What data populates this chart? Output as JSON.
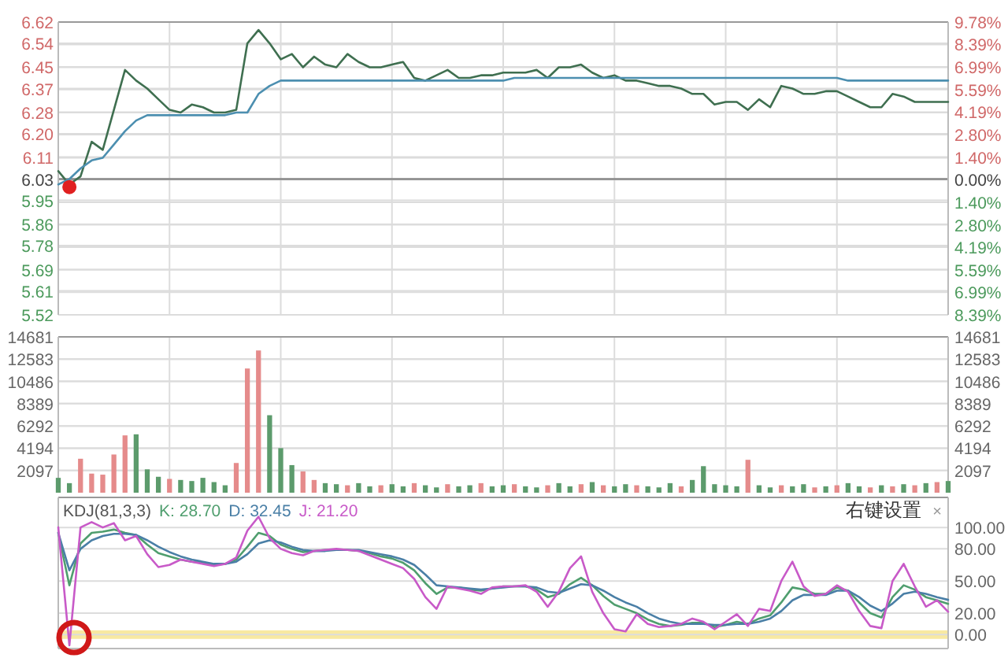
{
  "chart_data": [
    {
      "type": "line",
      "tick_labels": "y",
      "grid": true,
      "marker": "none",
      "categories": [
        null,
        null,
        null,
        null,
        null,
        null,
        null,
        null,
        null,
        null,
        null,
        null,
        null,
        null,
        null,
        null,
        null,
        null,
        null,
        null,
        null,
        null,
        null,
        null,
        null,
        null,
        null,
        null,
        null,
        null,
        null,
        null,
        null,
        null,
        null,
        null,
        null,
        null,
        null,
        null,
        null,
        null,
        null,
        null,
        null,
        null,
        null,
        null,
        null,
        null,
        null,
        null,
        null,
        null,
        null,
        null,
        null,
        null,
        null,
        null,
        null,
        null,
        null,
        null,
        null,
        null,
        null,
        null,
        null,
        null,
        null,
        null,
        null,
        null,
        null,
        null,
        null,
        null,
        null,
        null,
        null
      ],
      "ylim": [
        5.52,
        6.62
      ],
      "yticks": [
        6.62,
        6.54,
        6.45,
        6.37,
        6.28,
        {
          "value": 6.2,
          "label": "6.20"
        },
        6.11,
        6.03,
        5.95,
        5.86,
        5.78,
        5.69,
        5.61,
        5.52
      ],
      "y2lim": [
        -8.39,
        9.78
      ],
      "y2ticks": [
        {
          "value": 9.78,
          "label": "9.78%"
        },
        {
          "value": 8.39,
          "label": "8.39%"
        },
        {
          "value": 6.99,
          "label": "6.99%"
        },
        {
          "value": 5.59,
          "label": "5.59%"
        },
        {
          "value": 4.19,
          "label": "4.19%"
        },
        {
          "value": 2.8,
          "label": "2.80%"
        },
        {
          "value": 1.4,
          "label": "1.40%"
        },
        {
          "value": 0,
          "label": "0.00%"
        },
        {
          "value": -1.4,
          "label": "1.40%"
        },
        {
          "value": -2.8,
          "label": "2.80%"
        },
        {
          "value": -4.19,
          "label": "4.19%"
        },
        {
          "value": -5.59,
          "label": "5.59%"
        },
        {
          "value": -6.99,
          "label": "6.99%"
        },
        {
          "value": -8.39,
          "label": "8.39%"
        }
      ],
      "ref_lines": [
        {
          "axis": "y",
          "value": 6.03,
          "color": "#888888"
        }
      ],
      "series": [
        {
          "color": "#3f6f50",
          "values": [
            6.06,
            6.01,
            6.04,
            6.17,
            6.14,
            6.29,
            6.44,
            6.4,
            6.37,
            6.33,
            6.29,
            6.28,
            6.31,
            6.3,
            6.28,
            6.28,
            6.29,
            6.54,
            6.59,
            6.54,
            6.48,
            6.5,
            6.45,
            6.49,
            6.46,
            6.45,
            6.5,
            6.47,
            6.45,
            6.45,
            6.46,
            6.47,
            6.41,
            6.4,
            6.42,
            6.44,
            6.41,
            6.41,
            6.42,
            6.42,
            6.43,
            6.43,
            6.43,
            6.44,
            6.41,
            6.45,
            6.45,
            6.46,
            6.43,
            6.41,
            6.42,
            6.4,
            6.4,
            6.39,
            6.38,
            6.38,
            6.37,
            6.35,
            6.35,
            6.31,
            6.32,
            6.32,
            6.29,
            6.33,
            6.3,
            6.38,
            6.37,
            6.35,
            6.35,
            6.36,
            6.36,
            6.34,
            6.32,
            6.3,
            6.3,
            6.35,
            6.34,
            6.32,
            6.32,
            6.32,
            6.32
          ]
        },
        {
          "color": "#4c8fb0",
          "values": [
            6.01,
            6.03,
            6.07,
            6.1,
            6.11,
            6.16,
            6.21,
            6.25,
            6.27,
            6.27,
            6.27,
            6.27,
            6.27,
            6.27,
            6.27,
            6.27,
            6.28,
            6.28,
            6.35,
            6.38,
            6.4,
            6.4,
            6.4,
            6.4,
            6.4,
            6.4,
            6.4,
            6.4,
            6.4,
            6.4,
            6.4,
            6.4,
            6.4,
            6.4,
            6.4,
            6.4,
            6.4,
            6.4,
            6.4,
            6.4,
            6.4,
            6.41,
            6.41,
            6.41,
            6.41,
            6.41,
            6.41,
            6.41,
            6.41,
            6.41,
            6.41,
            6.41,
            6.41,
            6.41,
            6.41,
            6.41,
            6.41,
            6.41,
            6.41,
            6.41,
            6.41,
            6.41,
            6.41,
            6.41,
            6.41,
            6.41,
            6.41,
            6.41,
            6.41,
            6.41,
            6.41,
            6.4,
            6.4,
            6.4,
            6.4,
            6.4,
            6.4,
            6.4,
            6.4,
            6.4,
            6.4
          ]
        },
        {
          "type": "scatter",
          "marker": "circle",
          "color": "#e02020",
          "values": [
            null,
            6.0,
            null,
            null,
            null,
            null,
            null,
            null,
            null,
            null,
            null,
            null,
            null,
            null,
            null,
            null,
            null,
            null,
            null,
            null,
            null,
            null,
            null,
            null,
            null,
            null,
            null,
            null,
            null,
            null,
            null,
            null,
            null,
            null,
            null,
            null,
            null,
            null,
            null,
            null,
            null,
            null,
            null,
            null,
            null,
            null,
            null,
            null,
            null,
            null,
            null,
            null,
            null,
            null,
            null,
            null,
            null,
            null,
            null,
            null,
            null,
            null,
            null,
            null,
            null,
            null,
            null,
            null,
            null,
            null,
            null,
            null,
            null,
            null,
            null,
            null,
            null,
            null,
            null,
            null,
            null
          ]
        }
      ]
    },
    {
      "type": "bar",
      "tick_labels": "y",
      "grid": true,
      "categories": [
        null,
        null,
        null,
        null,
        null,
        null,
        null,
        null,
        null,
        null,
        null,
        null,
        null,
        null,
        null,
        null,
        null,
        null,
        null,
        null,
        null,
        null,
        null,
        null,
        null,
        null,
        null,
        null,
        null,
        null,
        null,
        null,
        null,
        null,
        null,
        null,
        null,
        null,
        null,
        null,
        null,
        null,
        null,
        null,
        null,
        null,
        null,
        null,
        null,
        null,
        null,
        null,
        null,
        null,
        null,
        null,
        null,
        null,
        null,
        null,
        null,
        null,
        null,
        null,
        null,
        null,
        null,
        null,
        null,
        null,
        null,
        null,
        null,
        null,
        null,
        null,
        null,
        null,
        null,
        null,
        null
      ],
      "ylim": [
        0,
        14681
      ],
      "yticks": [
        14681,
        12583,
        10486,
        8389,
        6292,
        4194,
        2097
      ],
      "y2lim": [
        0,
        14681
      ],
      "y2ticks": [
        14681,
        12583,
        10486,
        8389,
        6292,
        4194,
        2097
      ],
      "values": [
        1400,
        900,
        3200,
        1800,
        1700,
        3600,
        5400,
        5500,
        2200,
        1500,
        1300,
        1200,
        1100,
        1400,
        1000,
        700,
        2800,
        11700,
        13400,
        7300,
        4200,
        2600,
        2000,
        1200,
        900,
        800,
        700,
        900,
        600,
        700,
        800,
        600,
        900,
        700,
        500,
        800,
        600,
        700,
        900,
        600,
        700,
        800,
        600,
        500,
        700,
        900,
        600,
        800,
        1000,
        700,
        600,
        800,
        700,
        600,
        500,
        900,
        600,
        1200,
        2500,
        800,
        700,
        600,
        3100,
        700,
        500,
        700,
        600,
        800,
        500,
        600,
        700,
        900,
        600,
        500,
        700,
        600,
        800,
        700,
        900,
        1000,
        1100
      ],
      "colors": [
        "#5c9b6c",
        "#5c9b6c",
        "#e58b8b",
        "#e58b8b",
        "#e58b8b",
        "#e58b8b",
        "#e58b8b",
        "#5c9b6c",
        "#5c9b6c",
        "#5c9b6c",
        "#e58b8b",
        "#5c9b6c",
        "#5c9b6c",
        "#5c9b6c",
        "#5c9b6c",
        "#5c9b6c",
        "#e58b8b",
        "#e58b8b",
        "#e58b8b",
        "#5c9b6c",
        "#5c9b6c",
        "#5c9b6c",
        "#e58b8b",
        "#e58b8b",
        "#5c9b6c",
        "#5c9b6c",
        "#e58b8b",
        "#5c9b6c",
        "#5c9b6c",
        "#e58b8b",
        "#5c9b6c",
        "#5c9b6c",
        "#e58b8b",
        "#5c9b6c",
        "#5c9b6c",
        "#e58b8b",
        "#5c9b6c",
        "#5c9b6c",
        "#e58b8b",
        "#5c9b6c",
        "#5c9b6c",
        "#e58b8b",
        "#5c9b6c",
        "#5c9b6c",
        "#e58b8b",
        "#5c9b6c",
        "#5c9b6c",
        "#e58b8b",
        "#5c9b6c",
        "#e58b8b",
        "#5c9b6c",
        "#5c9b6c",
        "#e58b8b",
        "#5c9b6c",
        "#5c9b6c",
        "#5c9b6c",
        "#e58b8b",
        "#5c9b6c",
        "#5c9b6c",
        "#5c9b6c",
        "#5c9b6c",
        "#5c9b6c",
        "#e58b8b",
        "#5c9b6c",
        "#5c9b6c",
        "#e58b8b",
        "#5c9b6c",
        "#5c9b6c",
        "#e58b8b",
        "#5c9b6c",
        "#e58b8b",
        "#5c9b6c",
        "#5c9b6c",
        "#e58b8b",
        "#5c9b6c",
        "#e58b8b",
        "#5c9b6c",
        "#e58b8b",
        "#5c9b6c",
        "#e58b8b",
        "#5c9b6c"
      ]
    },
    {
      "type": "line",
      "tick_labels": "y",
      "grid": "y",
      "marker": "none",
      "title": "KDJ(81,3,3)",
      "annotations": [
        "右键设置",
        "×"
      ],
      "categories": [
        null,
        null,
        null,
        null,
        null,
        null,
        null,
        null,
        null,
        null,
        null,
        null,
        null,
        null,
        null,
        null,
        null,
        null,
        null,
        null,
        null,
        null,
        null,
        null,
        null,
        null,
        null,
        null,
        null,
        null,
        null,
        null,
        null,
        null,
        null,
        null,
        null,
        null,
        null,
        null,
        null,
        null,
        null,
        null,
        null,
        null,
        null,
        null,
        null,
        null,
        null,
        null,
        null,
        null,
        null,
        null,
        null,
        null,
        null,
        null,
        null,
        null,
        null,
        null,
        null,
        null,
        null,
        null,
        null,
        null,
        null,
        null,
        null,
        null,
        null,
        null,
        null,
        null,
        null,
        null,
        null
      ],
      "ylim": [
        -13,
        128
      ],
      "yticks": [
        {
          "value": 100,
          "label": "100.00"
        },
        {
          "value": 80,
          "label": "80.00"
        },
        {
          "value": 50,
          "label": "50.00"
        },
        {
          "value": 20,
          "label": "20.00"
        },
        {
          "value": 0,
          "label": "0.00"
        }
      ],
      "bands": [
        {
          "axis": "y",
          "from": -4,
          "to": 4,
          "color": "#f8e9a1"
        }
      ],
      "series": [
        {
          "name": "K: 28.70",
          "color": "#4f9e6e",
          "values": [
            95,
            46,
            85,
            95,
            96,
            98,
            95,
            93,
            84,
            76,
            73,
            70,
            68,
            67,
            65,
            66,
            70,
            82,
            95,
            92,
            84,
            80,
            77,
            78,
            79,
            79,
            79,
            78,
            76,
            73,
            71,
            67,
            60,
            48,
            38,
            44,
            44,
            42,
            41,
            43,
            45,
            45,
            45,
            42,
            35,
            38,
            47,
            53,
            46,
            36,
            28,
            24,
            20,
            14,
            10,
            8,
            9,
            11,
            11,
            7,
            9,
            12,
            10,
            15,
            18,
            30,
            44,
            42,
            38,
            38,
            44,
            41,
            30,
            20,
            16,
            35,
            46,
            42,
            35,
            32,
            28.7
          ]
        },
        {
          "name": "D: 32.45",
          "color": "#4a7fa6",
          "values": [
            95,
            60,
            80,
            88,
            92,
            94,
            94,
            93,
            88,
            82,
            77,
            73,
            70,
            68,
            66,
            66,
            68,
            75,
            85,
            88,
            86,
            82,
            79,
            78,
            78,
            79,
            79,
            79,
            77,
            75,
            73,
            70,
            65,
            56,
            46,
            45,
            44,
            43,
            42,
            43,
            44,
            45,
            45,
            44,
            40,
            39,
            43,
            47,
            46,
            41,
            35,
            30,
            26,
            20,
            15,
            12,
            10,
            10,
            10,
            9,
            9,
            10,
            10,
            12,
            15,
            22,
            32,
            37,
            37,
            37,
            41,
            41,
            35,
            27,
            22,
            29,
            38,
            40,
            38,
            35,
            32.45
          ]
        },
        {
          "name": "J: 21.20",
          "color": "#c85ac8",
          "values": [
            100,
            -10,
            100,
            105,
            100,
            104,
            88,
            92,
            75,
            63,
            65,
            70,
            68,
            66,
            64,
            66,
            72,
            97,
            110,
            90,
            80,
            76,
            74,
            78,
            79,
            80,
            79,
            78,
            74,
            70,
            66,
            62,
            52,
            35,
            24,
            45,
            43,
            41,
            38,
            44,
            45,
            45,
            46,
            40,
            26,
            40,
            62,
            73,
            40,
            20,
            5,
            3,
            19,
            10,
            7,
            8,
            10,
            15,
            12,
            5,
            12,
            19,
            8,
            24,
            22,
            50,
            68,
            45,
            36,
            38,
            46,
            40,
            22,
            8,
            6,
            50,
            66,
            45,
            26,
            32,
            21.2
          ]
        }
      ]
    }
  ]
}
